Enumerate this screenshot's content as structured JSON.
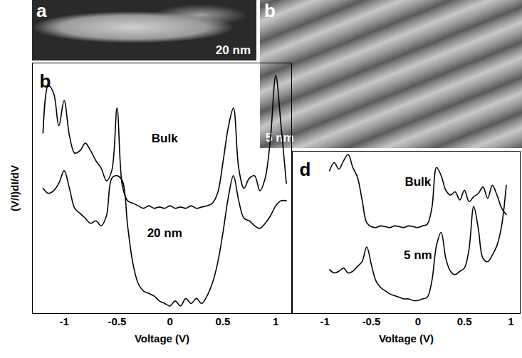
{
  "chart_data": [
    {
      "type": "line",
      "panel": "b",
      "x_label": "Voltage (V)",
      "y_label": "(V/I)dI/dV",
      "x": [
        -1.2,
        -1.15,
        -1.1,
        -1.05,
        -1,
        -0.95,
        -0.9,
        -0.85,
        -0.8,
        -0.75,
        -0.7,
        -0.65,
        -0.6,
        -0.55,
        -0.5,
        -0.45,
        -0.4,
        -0.35,
        -0.3,
        -0.25,
        -0.2,
        -0.15,
        -0.1,
        -0.05,
        0,
        0.05,
        0.1,
        0.15,
        0.2,
        0.25,
        0.3,
        0.35,
        0.4,
        0.45,
        0.5,
        0.55,
        0.6,
        0.65,
        0.7,
        0.75,
        0.8,
        0.85,
        0.9,
        0.95,
        1,
        1.05,
        1.1
      ],
      "series": [
        {
          "name": "Bulk",
          "color": "#000000",
          "values": [
            7.2,
            9.1,
            8.8,
            7.5,
            8.5,
            7.1,
            6.4,
            6.5,
            6.8,
            6.5,
            6.1,
            5.8,
            5.3,
            5.7,
            8.2,
            5.1,
            4.5,
            4.4,
            4.3,
            4.2,
            4.3,
            4.2,
            4.25,
            4.2,
            4.3,
            4.2,
            4.25,
            4.2,
            4.3,
            4.2,
            4.25,
            4.3,
            4.4,
            4.8,
            6.0,
            7.4,
            8.2,
            5.8,
            5.0,
            5.4,
            5.5,
            4.9,
            5.4,
            7.0,
            9.5,
            7.5,
            5.2
          ]
        },
        {
          "name": "20 nm",
          "color": "#000000",
          "values": [
            5.0,
            4.8,
            4.9,
            5.2,
            5.7,
            5.0,
            4.2,
            4.0,
            3.8,
            3.6,
            3.7,
            3.5,
            3.9,
            5.4,
            5.5,
            5.3,
            3.5,
            2.0,
            1.2,
            0.9,
            0.8,
            0.7,
            0.5,
            0.4,
            0.3,
            0.5,
            0.3,
            0.6,
            0.4,
            0.6,
            0.4,
            0.7,
            1.2,
            2.0,
            3.2,
            4.6,
            5.5,
            4.5,
            3.8,
            3.7,
            3.5,
            3.4,
            3.6,
            3.9,
            4.3,
            4.5,
            4.5
          ]
        }
      ],
      "xlim": [
        -1.3,
        1.15
      ],
      "xticks": [
        -1,
        -0.5,
        0,
        0.5,
        1
      ],
      "ylim": [
        0,
        10
      ],
      "tick_labels": "x"
    },
    {
      "type": "line",
      "panel": "d",
      "x_label": "Voltage (V)",
      "x": [
        -0.95,
        -0.9,
        -0.85,
        -0.8,
        -0.75,
        -0.7,
        -0.65,
        -0.6,
        -0.55,
        -0.5,
        -0.45,
        -0.4,
        -0.35,
        -0.3,
        -0.25,
        -0.2,
        -0.15,
        -0.1,
        -0.05,
        0,
        0.05,
        0.1,
        0.15,
        0.2,
        0.25,
        0.3,
        0.35,
        0.4,
        0.45,
        0.5,
        0.55,
        0.6,
        0.65,
        0.7,
        0.75,
        0.8,
        0.85,
        0.9,
        0.95
      ],
      "series": [
        {
          "name": "Bulk",
          "color": "#000000",
          "values": [
            8.8,
            9.3,
            8.9,
            9.4,
            9.8,
            9.0,
            8.4,
            7.0,
            5.6,
            5.35,
            5.3,
            5.4,
            5.35,
            5.3,
            5.4,
            5.35,
            5.3,
            5.4,
            5.35,
            5.3,
            5.4,
            5.5,
            6.5,
            9.0,
            8.5,
            7.6,
            7.3,
            7.5,
            7.0,
            7.6,
            6.9,
            7.2,
            7.4,
            7.8,
            7.1,
            7.9,
            7.3,
            6.5,
            6.1
          ]
        },
        {
          "name": "5 nm",
          "color": "#000000",
          "values": [
            2.7,
            2.5,
            2.6,
            2.8,
            2.5,
            2.6,
            2.9,
            3.2,
            4.1,
            3.0,
            2.0,
            1.6,
            1.4,
            1.2,
            1.1,
            1.0,
            0.9,
            0.9,
            0.8,
            0.8,
            0.9,
            1.0,
            2.0,
            4.2,
            5.0,
            3.4,
            2.6,
            2.4,
            2.6,
            2.8,
            4.0,
            6.6,
            5.2,
            3.4,
            3.2,
            3.6,
            4.2,
            5.4,
            7.9
          ]
        }
      ],
      "xlim": [
        -1.35,
        1.1
      ],
      "xticks": [
        -1,
        -0.5,
        0,
        0.5,
        1
      ],
      "ylim": [
        0,
        10
      ],
      "tick_labels": "x"
    }
  ],
  "images": [
    {
      "panel": "a",
      "scale_bar": "20 nm"
    },
    {
      "panel": "b",
      "scale_bar": "5 nm"
    }
  ]
}
